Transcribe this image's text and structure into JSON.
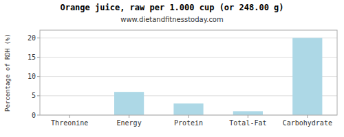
{
  "chart_data": {
    "type": "bar",
    "title": "Orange juice, raw per 1.000 cup (or 248.00 g)",
    "subtitle": "www.dietandfitnesstoday.com",
    "categories": [
      "Threonine",
      "Energy",
      "Protein",
      "Total-Fat",
      "Carbohydrate"
    ],
    "values": [
      0,
      6,
      3,
      1,
      20
    ],
    "color": "#add8e6",
    "ylabel": "Percentage of RDH (%)",
    "ylim": [
      0,
      22
    ],
    "yticks": [
      0,
      5,
      10,
      15,
      20
    ],
    "grid": true
  }
}
